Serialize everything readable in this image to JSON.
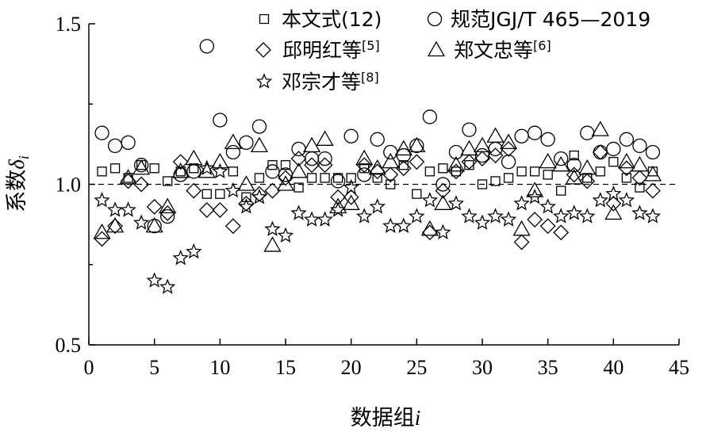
{
  "chart_data": {
    "type": "scatter",
    "title": "",
    "xlabel": "数据组",
    "xlabel_var": "i",
    "ylabel": "系数",
    "ylabel_var": "δ",
    "ylabel_sub": "i",
    "xlim": [
      0,
      45
    ],
    "ylim": [
      0.5,
      1.5
    ],
    "xticks": [
      "0",
      "5",
      "10",
      "15",
      "20",
      "25",
      "30",
      "35",
      "40",
      "45"
    ],
    "yticks": [
      "0.5",
      "1.0",
      "1.5"
    ],
    "reference_line": 1.0,
    "grid": false,
    "legend_position": "top",
    "series": [
      {
        "name": "本文式(12)",
        "marker": "square",
        "x": [
          1,
          2,
          3,
          4,
          5,
          6,
          7,
          8,
          9,
          10,
          11,
          12,
          13,
          14,
          15,
          16,
          17,
          18,
          19,
          20,
          21,
          22,
          23,
          24,
          25,
          26,
          27,
          28,
          29,
          30,
          31,
          32,
          33,
          34,
          35,
          36,
          37,
          38,
          39,
          40,
          41,
          42,
          43
        ],
        "y": [
          1.04,
          1.05,
          1.02,
          1.06,
          1.05,
          1.01,
          1.04,
          1.05,
          0.97,
          0.97,
          1.04,
          0.96,
          1.02,
          1.06,
          1.06,
          0.99,
          1.02,
          1.02,
          1.02,
          1.02,
          1.05,
          1.02,
          1.0,
          1.06,
          0.97,
          1.04,
          1.05,
          1.04,
          1.06,
          1.0,
          1.01,
          1.02,
          1.04,
          1.04,
          1.03,
          0.98,
          1.09,
          1.02,
          1.04,
          1.07,
          1.02,
          0.99,
          1.04
        ]
      },
      {
        "name": "规范JGJ/T 465—2019",
        "marker": "circle",
        "x": [
          1,
          2,
          3,
          4,
          5,
          6,
          7,
          8,
          9,
          10,
          11,
          12,
          13,
          14,
          15,
          16,
          17,
          18,
          19,
          20,
          21,
          22,
          23,
          24,
          25,
          26,
          27,
          28,
          29,
          30,
          31,
          32,
          33,
          34,
          35,
          36,
          37,
          38,
          39,
          40,
          41,
          42,
          43
        ],
        "y": [
          1.16,
          1.12,
          1.13,
          1.06,
          0.87,
          0.9,
          1.03,
          1.04,
          1.43,
          1.2,
          1.1,
          1.13,
          1.18,
          1.04,
          1.03,
          1.11,
          1.08,
          1.08,
          1.01,
          1.15,
          1.03,
          1.14,
          1.1,
          1.09,
          1.12,
          1.21,
          1.0,
          1.1,
          1.17,
          1.09,
          1.11,
          1.07,
          1.15,
          1.16,
          1.14,
          1.08,
          1.06,
          1.16,
          1.1,
          1.11,
          1.14,
          1.12,
          1.1
        ]
      },
      {
        "name": "邱明红等[5]",
        "marker": "diamond",
        "x": [
          1,
          2,
          3,
          4,
          5,
          6,
          7,
          8,
          9,
          10,
          11,
          12,
          13,
          14,
          15,
          16,
          17,
          18,
          19,
          20,
          21,
          22,
          23,
          24,
          25,
          26,
          27,
          28,
          29,
          30,
          31,
          32,
          33,
          34,
          35,
          36,
          37,
          38,
          39,
          40,
          41,
          42,
          43
        ],
        "y": [
          0.83,
          0.87,
          1.01,
          1.0,
          0.93,
          0.91,
          1.07,
          0.98,
          0.92,
          0.92,
          0.87,
          0.94,
          0.97,
          0.98,
          1.02,
          1.08,
          1.06,
          1.06,
          0.96,
          0.96,
          1.06,
          1.04,
          1.03,
          1.05,
          1.07,
          0.85,
          0.98,
          1.04,
          1.07,
          1.08,
          1.09,
          1.11,
          0.82,
          0.89,
          0.87,
          0.85,
          1.03,
          1.01,
          1.1,
          0.94,
          1.05,
          1.02,
          0.98
        ]
      },
      {
        "name": "郑文忠等[6]",
        "marker": "triangle",
        "x": [
          1,
          2,
          3,
          4,
          5,
          6,
          7,
          8,
          9,
          10,
          11,
          12,
          13,
          14,
          15,
          16,
          17,
          18,
          19,
          20,
          21,
          22,
          23,
          24,
          25,
          26,
          27,
          28,
          29,
          30,
          31,
          32,
          33,
          34,
          35,
          36,
          37,
          38,
          39,
          40,
          41,
          42,
          43
        ],
        "y": [
          0.85,
          0.87,
          1.02,
          1.05,
          0.87,
          0.93,
          1.04,
          1.08,
          1.04,
          1.07,
          1.13,
          1.0,
          1.12,
          0.81,
          1.0,
          1.04,
          1.12,
          1.14,
          0.93,
          0.94,
          1.08,
          1.05,
          1.07,
          1.11,
          1.12,
          0.86,
          0.94,
          1.06,
          1.11,
          1.12,
          1.15,
          1.13,
          0.86,
          0.98,
          1.07,
          1.06,
          1.02,
          1.05,
          1.17,
          0.91,
          1.07,
          1.06,
          1.03
        ]
      },
      {
        "name": "邓宗才等[8]",
        "marker": "star",
        "x": [
          1,
          2,
          3,
          4,
          5,
          6,
          7,
          8,
          9,
          10,
          11,
          12,
          13,
          14,
          15,
          16,
          17,
          18,
          19,
          20,
          21,
          22,
          23,
          24,
          25,
          26,
          27,
          28,
          29,
          30,
          31,
          32,
          33,
          34,
          35,
          36,
          37,
          38,
          39,
          40,
          41,
          42,
          43
        ],
        "y": [
          0.95,
          0.92,
          0.92,
          0.88,
          0.7,
          0.68,
          0.77,
          0.79,
          1.05,
          1.04,
          0.98,
          0.93,
          0.96,
          0.86,
          0.84,
          0.91,
          0.89,
          0.89,
          0.92,
          0.99,
          0.9,
          0.93,
          0.87,
          0.87,
          0.9,
          0.95,
          0.85,
          0.94,
          0.9,
          0.88,
          0.9,
          0.89,
          0.94,
          0.96,
          0.93,
          0.9,
          0.91,
          0.9,
          0.95,
          0.97,
          0.95,
          0.91,
          0.9
        ]
      }
    ]
  }
}
